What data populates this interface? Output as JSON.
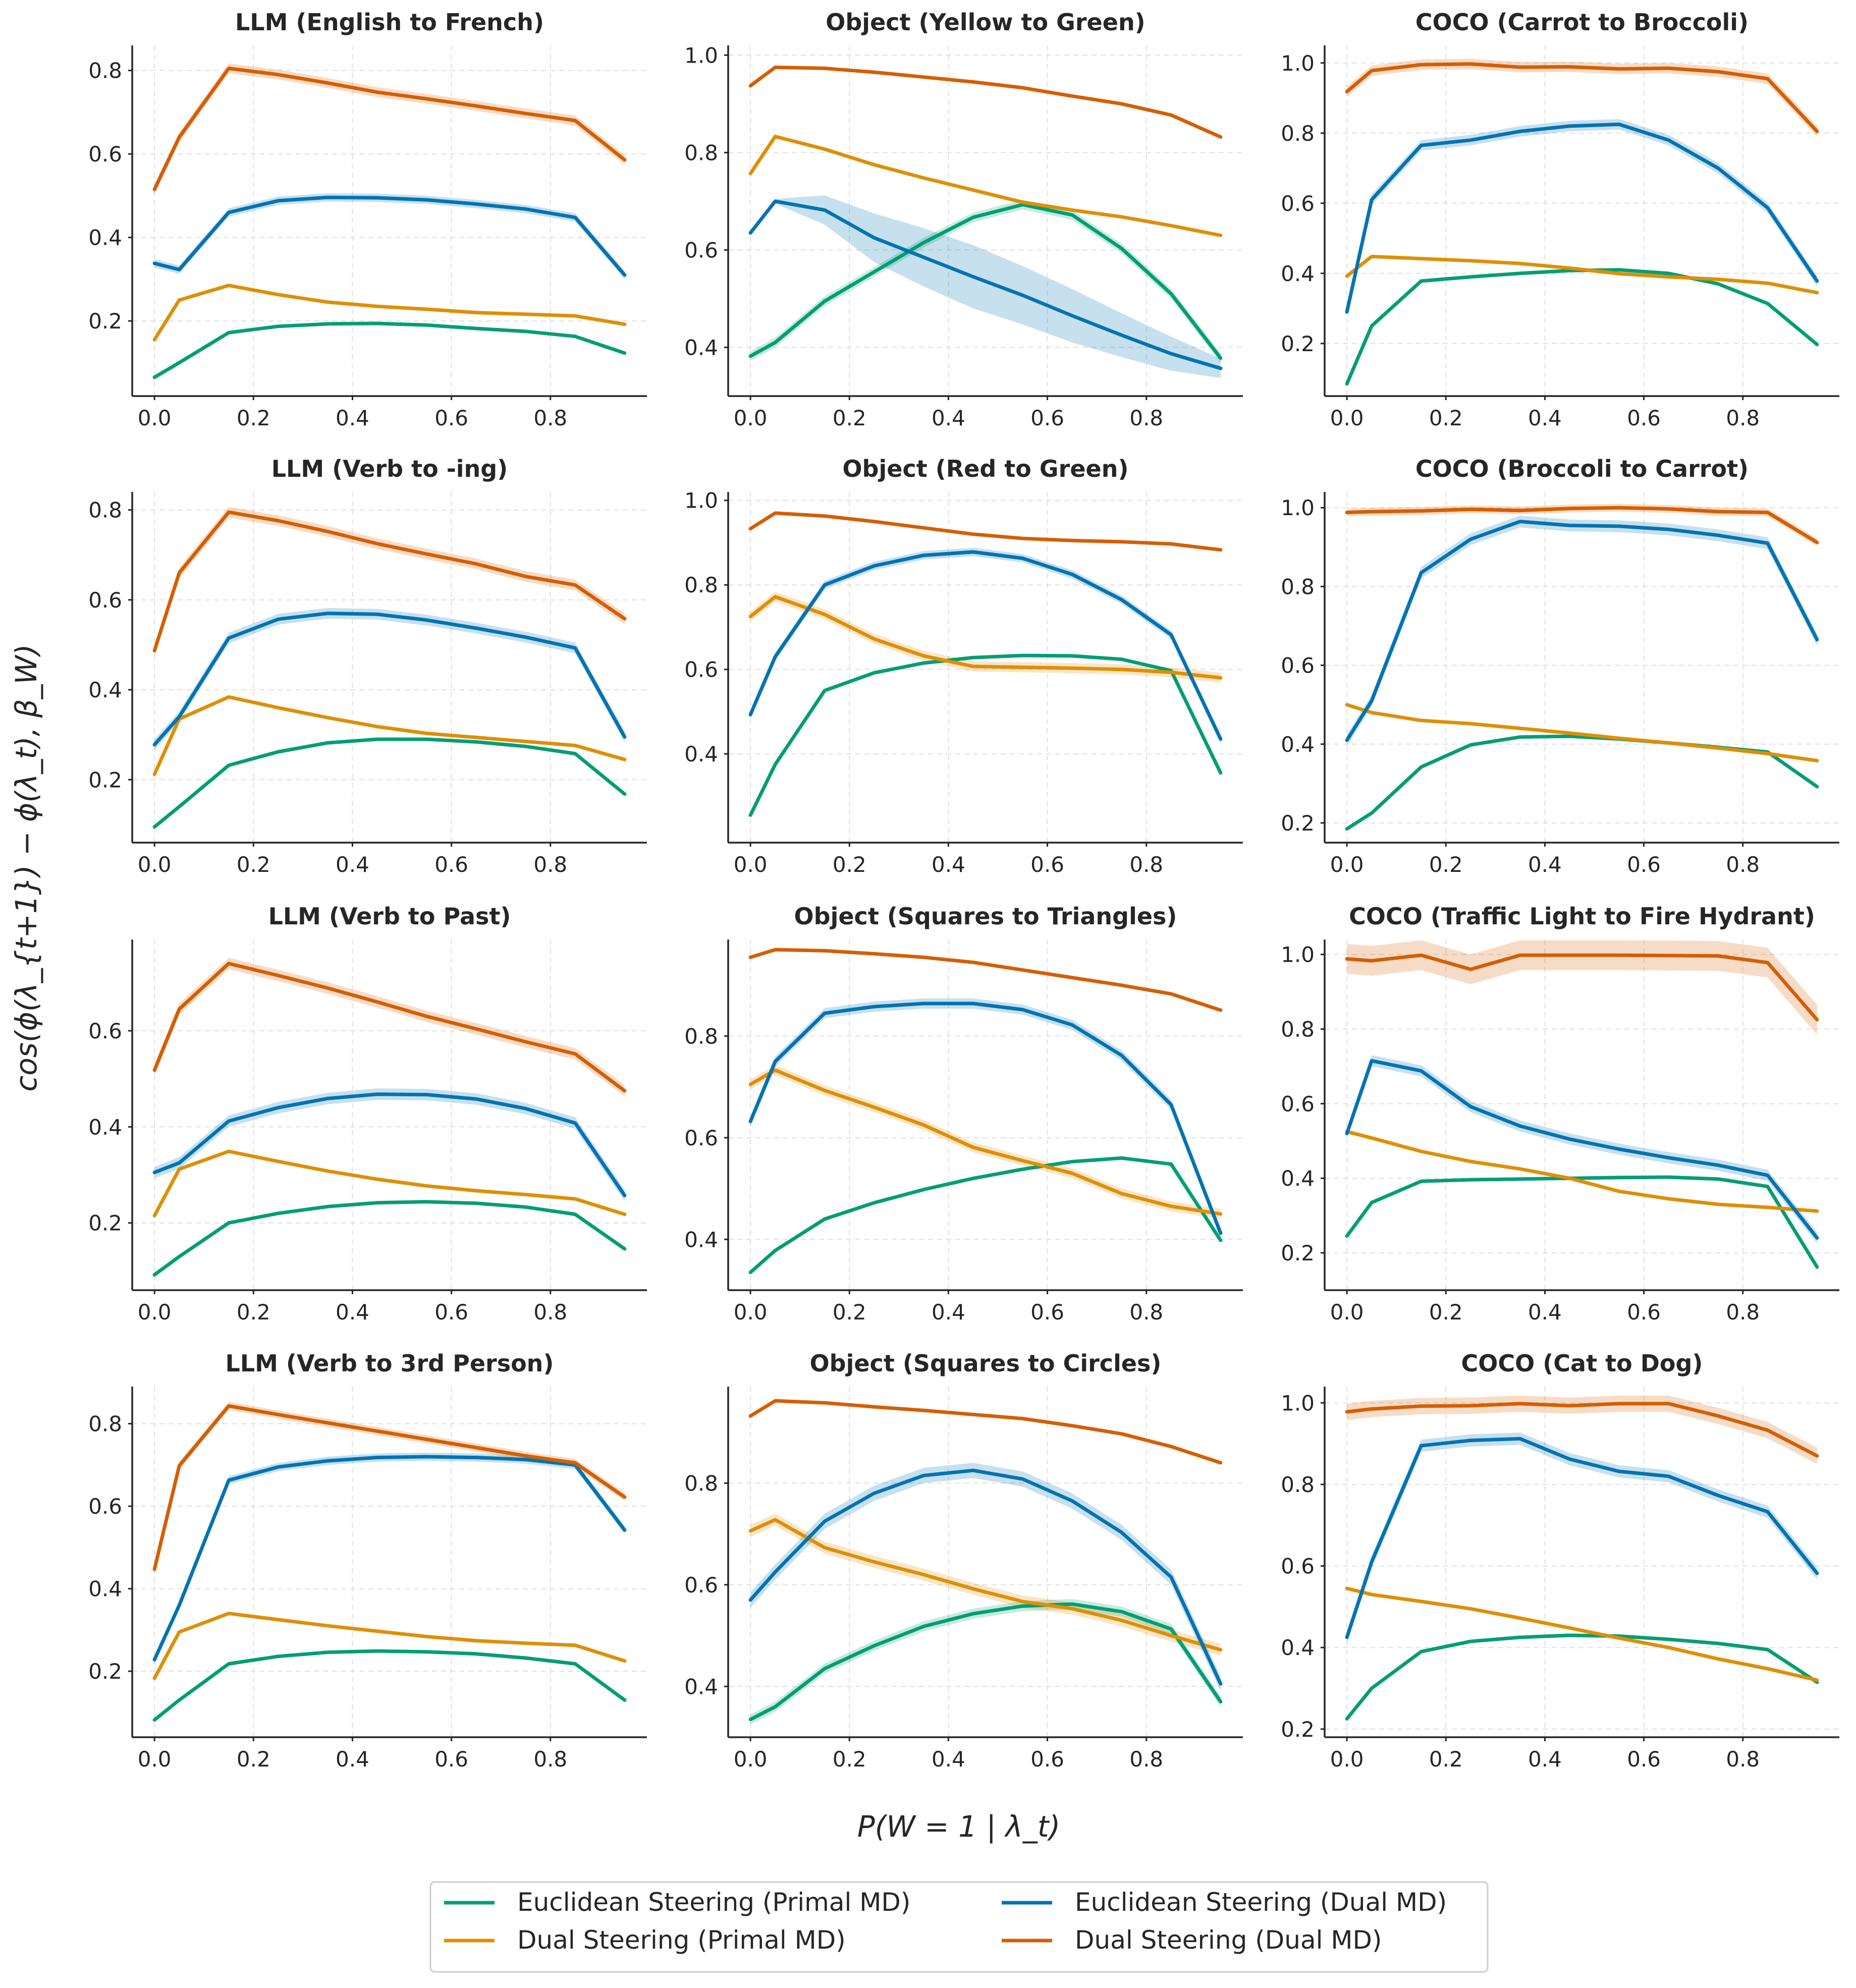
{
  "chart_data": {
    "type": "line",
    "ylabel": "cos(ϕ(λ_{t+1}) − ϕ(λ_t), β_W)",
    "xlabel": "P(W = 1 | λ_t)",
    "x": [
      0.0,
      0.05,
      0.15,
      0.25,
      0.35,
      0.45,
      0.55,
      0.65,
      0.75,
      0.85,
      0.95
    ],
    "legend": [
      {
        "key": "ep",
        "label": "Euclidean Steering (Primal MD)",
        "color": "#029e73"
      },
      {
        "key": "ed",
        "label": "Euclidean Steering (Dual MD)",
        "color": "#0173b2"
      },
      {
        "key": "dp",
        "label": "Dual Steering (Primal MD)",
        "color": "#de8f05"
      },
      {
        "key": "dd",
        "label": "Dual Steering (Dual MD)",
        "color": "#d55e00"
      }
    ],
    "panels": [
      {
        "title": "LLM (English to French)",
        "ylim": [
          0.02,
          0.86
        ],
        "yticks": [
          0.2,
          0.4,
          0.6,
          0.8
        ],
        "xticks": [
          0.0,
          0.2,
          0.4,
          0.6,
          0.8
        ],
        "series": {
          "ep": [
            0.065,
            0.1,
            0.172,
            0.187,
            0.193,
            0.194,
            0.19,
            0.182,
            0.175,
            0.163,
            0.123
          ],
          "dp": [
            0.155,
            0.25,
            0.285,
            0.263,
            0.245,
            0.235,
            0.228,
            0.22,
            0.216,
            0.212,
            0.192
          ],
          "ed": [
            0.338,
            0.323,
            0.46,
            0.488,
            0.496,
            0.495,
            0.49,
            0.48,
            0.468,
            0.448,
            0.31
          ],
          "dd": [
            0.515,
            0.64,
            0.805,
            0.79,
            0.77,
            0.748,
            0.732,
            0.715,
            0.697,
            0.68,
            0.586
          ]
        },
        "bands": {
          "ed": 0.01,
          "dd": 0.012
        }
      },
      {
        "title": "Object (Yellow to Green)",
        "ylim": [
          0.3,
          1.02
        ],
        "yticks": [
          0.4,
          0.6,
          0.8,
          1.0
        ],
        "xticks": [
          0.0,
          0.2,
          0.4,
          0.6,
          0.8
        ],
        "series": {
          "ep": [
            0.382,
            0.41,
            0.495,
            0.555,
            0.615,
            0.667,
            0.693,
            0.672,
            0.603,
            0.51,
            0.378
          ],
          "dp": [
            0.757,
            0.833,
            0.807,
            0.775,
            0.748,
            0.723,
            0.698,
            0.682,
            0.668,
            0.65,
            0.63
          ],
          "ed": [
            0.635,
            0.7,
            0.682,
            0.625,
            0.585,
            0.545,
            0.507,
            0.465,
            0.425,
            0.387,
            0.357
          ],
          "dd": [
            0.937,
            0.975,
            0.973,
            0.965,
            0.955,
            0.945,
            0.933,
            0.916,
            0.9,
            0.877,
            0.832
          ]
        },
        "bands": {
          "ed_custom": [
            0.0,
            0.005,
            0.03,
            0.05,
            0.06,
            0.065,
            0.06,
            0.055,
            0.045,
            0.035,
            0.02
          ],
          "ep": 0.01
        }
      },
      {
        "title": "COCO (Carrot to Broccoli)",
        "ylim": [
          0.05,
          1.05
        ],
        "yticks": [
          0.2,
          0.4,
          0.6,
          0.8,
          1.0
        ],
        "xticks": [
          0.0,
          0.2,
          0.4,
          0.6,
          0.8
        ],
        "series": {
          "ep": [
            0.085,
            0.25,
            0.378,
            0.39,
            0.4,
            0.408,
            0.41,
            0.4,
            0.37,
            0.314,
            0.197
          ],
          "dp": [
            0.392,
            0.448,
            0.442,
            0.436,
            0.428,
            0.415,
            0.399,
            0.39,
            0.383,
            0.372,
            0.345
          ],
          "ed": [
            0.29,
            0.61,
            0.765,
            0.78,
            0.805,
            0.82,
            0.825,
            0.78,
            0.7,
            0.587,
            0.378
          ],
          "dd": [
            0.918,
            0.978,
            0.995,
            0.997,
            0.988,
            0.989,
            0.983,
            0.985,
            0.975,
            0.955,
            0.805
          ]
        },
        "bands": {
          "ed": 0.015,
          "dd": 0.015
        }
      },
      {
        "title": "LLM (Verb to -ing)",
        "ylim": [
          0.06,
          0.84
        ],
        "yticks": [
          0.2,
          0.4,
          0.6,
          0.8
        ],
        "xticks": [
          0.0,
          0.2,
          0.4,
          0.6,
          0.8
        ],
        "series": {
          "ep": [
            0.095,
            0.14,
            0.232,
            0.262,
            0.282,
            0.29,
            0.29,
            0.284,
            0.274,
            0.258,
            0.168
          ],
          "dp": [
            0.212,
            0.335,
            0.384,
            0.36,
            0.338,
            0.318,
            0.303,
            0.294,
            0.285,
            0.276,
            0.245
          ],
          "ed": [
            0.278,
            0.34,
            0.515,
            0.557,
            0.57,
            0.568,
            0.555,
            0.537,
            0.517,
            0.493,
            0.295
          ],
          "dd": [
            0.487,
            0.66,
            0.795,
            0.776,
            0.752,
            0.725,
            0.702,
            0.68,
            0.652,
            0.633,
            0.558
          ]
        },
        "bands": {
          "ed": 0.012,
          "dd": 0.012
        }
      },
      {
        "title": "Object (Red to Green)",
        "ylim": [
          0.19,
          1.02
        ],
        "yticks": [
          0.4,
          0.6,
          0.8,
          1.0
        ],
        "xticks": [
          0.0,
          0.2,
          0.4,
          0.6,
          0.8
        ],
        "series": {
          "ep": [
            0.255,
            0.375,
            0.55,
            0.592,
            0.615,
            0.628,
            0.633,
            0.632,
            0.624,
            0.597,
            0.355
          ],
          "dp": [
            0.725,
            0.772,
            0.73,
            0.672,
            0.632,
            0.607,
            0.605,
            0.603,
            0.6,
            0.593,
            0.58
          ],
          "ed": [
            0.493,
            0.63,
            0.8,
            0.845,
            0.87,
            0.878,
            0.863,
            0.825,
            0.765,
            0.682,
            0.435
          ],
          "dd": [
            0.933,
            0.97,
            0.963,
            0.95,
            0.935,
            0.92,
            0.91,
            0.905,
            0.902,
            0.897,
            0.883
          ]
        },
        "bands": {
          "ed": 0.01,
          "dp": 0.012
        }
      },
      {
        "title": "COCO (Broccoli to Carrot)",
        "ylim": [
          0.15,
          1.04
        ],
        "yticks": [
          0.2,
          0.4,
          0.6,
          0.8,
          1.0
        ],
        "xticks": [
          0.0,
          0.2,
          0.4,
          0.6,
          0.8
        ],
        "series": {
          "ep": [
            0.185,
            0.225,
            0.342,
            0.398,
            0.418,
            0.42,
            0.413,
            0.403,
            0.392,
            0.38,
            0.292
          ],
          "dp": [
            0.5,
            0.48,
            0.46,
            0.452,
            0.44,
            0.428,
            0.415,
            0.403,
            0.39,
            0.376,
            0.358
          ],
          "ed": [
            0.41,
            0.51,
            0.835,
            0.92,
            0.965,
            0.955,
            0.953,
            0.945,
            0.93,
            0.91,
            0.665
          ],
          "dd": [
            0.988,
            0.99,
            0.992,
            0.996,
            0.993,
            0.998,
            1.0,
            0.997,
            0.99,
            0.988,
            0.912
          ]
        },
        "bands": {
          "ed": 0.015,
          "dd": 0.01
        }
      },
      {
        "title": "LLM (Verb to Past)",
        "ylim": [
          0.06,
          0.79
        ],
        "yticks": [
          0.2,
          0.4,
          0.6
        ],
        "xticks": [
          0.0,
          0.2,
          0.4,
          0.6,
          0.8
        ],
        "series": {
          "ep": [
            0.092,
            0.13,
            0.2,
            0.22,
            0.234,
            0.242,
            0.244,
            0.241,
            0.233,
            0.218,
            0.146
          ],
          "dp": [
            0.215,
            0.312,
            0.349,
            0.328,
            0.308,
            0.291,
            0.277,
            0.267,
            0.259,
            0.25,
            0.218
          ],
          "ed": [
            0.305,
            0.325,
            0.412,
            0.44,
            0.459,
            0.468,
            0.467,
            0.458,
            0.438,
            0.408,
            0.257
          ],
          "dd": [
            0.518,
            0.645,
            0.74,
            0.715,
            0.689,
            0.66,
            0.63,
            0.604,
            0.577,
            0.552,
            0.475
          ]
        },
        "bands": {
          "ed": 0.012,
          "dd": 0.012
        }
      },
      {
        "title": "Object (Squares to Triangles)",
        "ylim": [
          0.3,
          0.99
        ],
        "yticks": [
          0.4,
          0.6,
          0.8
        ],
        "xticks": [
          0.0,
          0.2,
          0.4,
          0.6,
          0.8
        ],
        "series": {
          "ep": [
            0.335,
            0.378,
            0.44,
            0.472,
            0.498,
            0.52,
            0.538,
            0.553,
            0.56,
            0.548,
            0.398
          ],
          "dp": [
            0.705,
            0.733,
            0.693,
            0.66,
            0.625,
            0.581,
            0.555,
            0.53,
            0.49,
            0.465,
            0.45
          ],
          "ed": [
            0.632,
            0.75,
            0.845,
            0.858,
            0.864,
            0.864,
            0.852,
            0.822,
            0.762,
            0.665,
            0.412
          ],
          "dd": [
            0.955,
            0.97,
            0.968,
            0.962,
            0.955,
            0.945,
            0.93,
            0.915,
            0.9,
            0.883,
            0.851
          ]
        },
        "bands": {
          "ed": 0.01,
          "dp": 0.01
        }
      },
      {
        "title": "COCO (Traffic Light to Fire Hydrant)",
        "ylim": [
          0.1,
          1.04
        ],
        "yticks": [
          0.2,
          0.4,
          0.6,
          0.8,
          1.0
        ],
        "xticks": [
          0.0,
          0.2,
          0.4,
          0.6,
          0.8
        ],
        "series": {
          "ep": [
            0.245,
            0.335,
            0.392,
            0.396,
            0.398,
            0.4,
            0.402,
            0.403,
            0.398,
            0.378,
            0.162
          ],
          "dp": [
            0.525,
            0.508,
            0.472,
            0.445,
            0.425,
            0.4,
            0.365,
            0.345,
            0.33,
            0.322,
            0.312
          ],
          "ed": [
            0.52,
            0.715,
            0.688,
            0.592,
            0.54,
            0.505,
            0.478,
            0.455,
            0.435,
            0.408,
            0.24
          ],
          "dd": [
            0.988,
            0.983,
            0.998,
            0.96,
            0.998,
            0.998,
            0.998,
            0.997,
            0.996,
            0.978,
            0.825
          ]
        },
        "bands": {
          "ed": 0.015,
          "dd": 0.04
        }
      },
      {
        "title": "LLM (Verb to 3rd Person)",
        "ylim": [
          0.04,
          0.89
        ],
        "yticks": [
          0.2,
          0.4,
          0.6,
          0.8
        ],
        "xticks": [
          0.0,
          0.2,
          0.4,
          0.6,
          0.8
        ],
        "series": {
          "ep": [
            0.082,
            0.13,
            0.218,
            0.236,
            0.246,
            0.249,
            0.247,
            0.242,
            0.232,
            0.218,
            0.13
          ],
          "dp": [
            0.183,
            0.295,
            0.34,
            0.325,
            0.31,
            0.297,
            0.284,
            0.274,
            0.268,
            0.263,
            0.225
          ],
          "ed": [
            0.228,
            0.36,
            0.663,
            0.695,
            0.71,
            0.718,
            0.72,
            0.718,
            0.713,
            0.7,
            0.542
          ],
          "dd": [
            0.447,
            0.698,
            0.843,
            0.822,
            0.802,
            0.782,
            0.762,
            0.742,
            0.722,
            0.705,
            0.622
          ]
        },
        "bands": {
          "ed": 0.01,
          "dd": 0.01
        }
      },
      {
        "title": "Object (Squares to Circles)",
        "ylim": [
          0.3,
          0.99
        ],
        "yticks": [
          0.4,
          0.6,
          0.8
        ],
        "xticks": [
          0.0,
          0.2,
          0.4,
          0.6,
          0.8
        ],
        "series": {
          "ep": [
            0.335,
            0.36,
            0.435,
            0.48,
            0.518,
            0.543,
            0.558,
            0.562,
            0.547,
            0.513,
            0.37
          ],
          "dp": [
            0.706,
            0.728,
            0.673,
            0.645,
            0.62,
            0.592,
            0.567,
            0.553,
            0.53,
            0.5,
            0.472
          ],
          "ed": [
            0.57,
            0.625,
            0.725,
            0.78,
            0.815,
            0.825,
            0.808,
            0.765,
            0.703,
            0.615,
            0.405
          ],
          "dd": [
            0.932,
            0.962,
            0.958,
            0.95,
            0.943,
            0.935,
            0.927,
            0.913,
            0.897,
            0.872,
            0.84
          ]
        },
        "bands": {
          "ed": 0.015,
          "dp": 0.012,
          "ep": 0.01
        }
      },
      {
        "title": "COCO (Cat to Dog)",
        "ylim": [
          0.18,
          1.04
        ],
        "yticks": [
          0.2,
          0.4,
          0.6,
          0.8,
          1.0
        ],
        "xticks": [
          0.0,
          0.2,
          0.4,
          0.6,
          0.8
        ],
        "series": {
          "ep": [
            0.225,
            0.3,
            0.39,
            0.415,
            0.425,
            0.43,
            0.428,
            0.42,
            0.41,
            0.395,
            0.315
          ],
          "dp": [
            0.545,
            0.53,
            0.513,
            0.495,
            0.472,
            0.448,
            0.423,
            0.4,
            0.372,
            0.348,
            0.32
          ],
          "ed": [
            0.425,
            0.61,
            0.895,
            0.908,
            0.912,
            0.862,
            0.832,
            0.82,
            0.773,
            0.733,
            0.582
          ],
          "dd": [
            0.978,
            0.985,
            0.992,
            0.993,
            0.998,
            0.993,
            0.998,
            0.998,
            0.968,
            0.933,
            0.87
          ]
        },
        "bands": {
          "ed": 0.015,
          "dd": 0.02
        }
      }
    ]
  }
}
